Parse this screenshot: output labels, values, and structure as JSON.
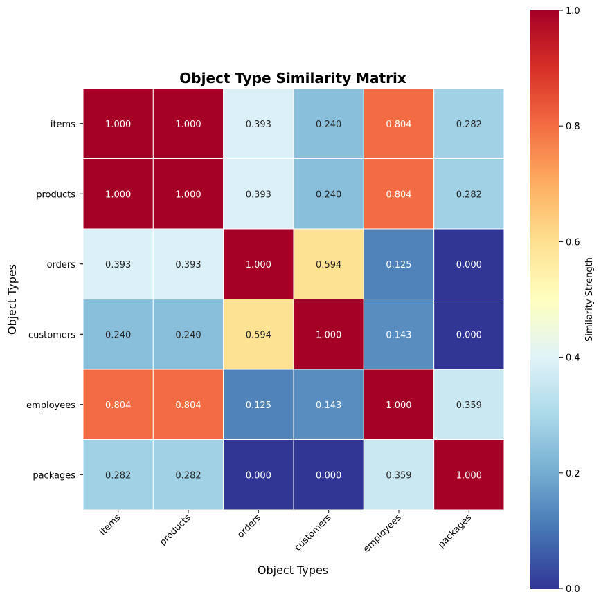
{
  "chart_data": {
    "type": "heatmap",
    "title": "Object Type Similarity Matrix",
    "xlabel": "Object Types",
    "ylabel": "Object Types",
    "x_categories": [
      "items",
      "products",
      "orders",
      "customers",
      "employees",
      "packages"
    ],
    "y_categories": [
      "items",
      "products",
      "orders",
      "customers",
      "employees",
      "packages"
    ],
    "values": [
      [
        1.0,
        1.0,
        0.393,
        0.24,
        0.804,
        0.282
      ],
      [
        1.0,
        1.0,
        0.393,
        0.24,
        0.804,
        0.282
      ],
      [
        0.393,
        0.393,
        1.0,
        0.594,
        0.125,
        0.0
      ],
      [
        0.24,
        0.24,
        0.594,
        1.0,
        0.143,
        0.0
      ],
      [
        0.804,
        0.804,
        0.125,
        0.143,
        1.0,
        0.359
      ],
      [
        0.282,
        0.282,
        0.0,
        0.0,
        0.359,
        1.0
      ]
    ],
    "value_format": "3 decimals",
    "colormap": "RdYlBu_r",
    "vmin": 0.0,
    "vmax": 1.0,
    "colorbar": {
      "label": "Similarity Strength",
      "ticks": [
        0.0,
        0.2,
        0.4,
        0.6,
        0.8,
        1.0
      ],
      "tick_labels": [
        "0.0",
        "0.2",
        "0.4",
        "0.6",
        "0.8",
        "1.0"
      ]
    },
    "colormap_stops": [
      "#313695",
      "#4575b4",
      "#74add1",
      "#abd9e9",
      "#e0f3f8",
      "#ffffbf",
      "#fee090",
      "#fdae61",
      "#f46d43",
      "#d73027",
      "#a50026"
    ]
  }
}
